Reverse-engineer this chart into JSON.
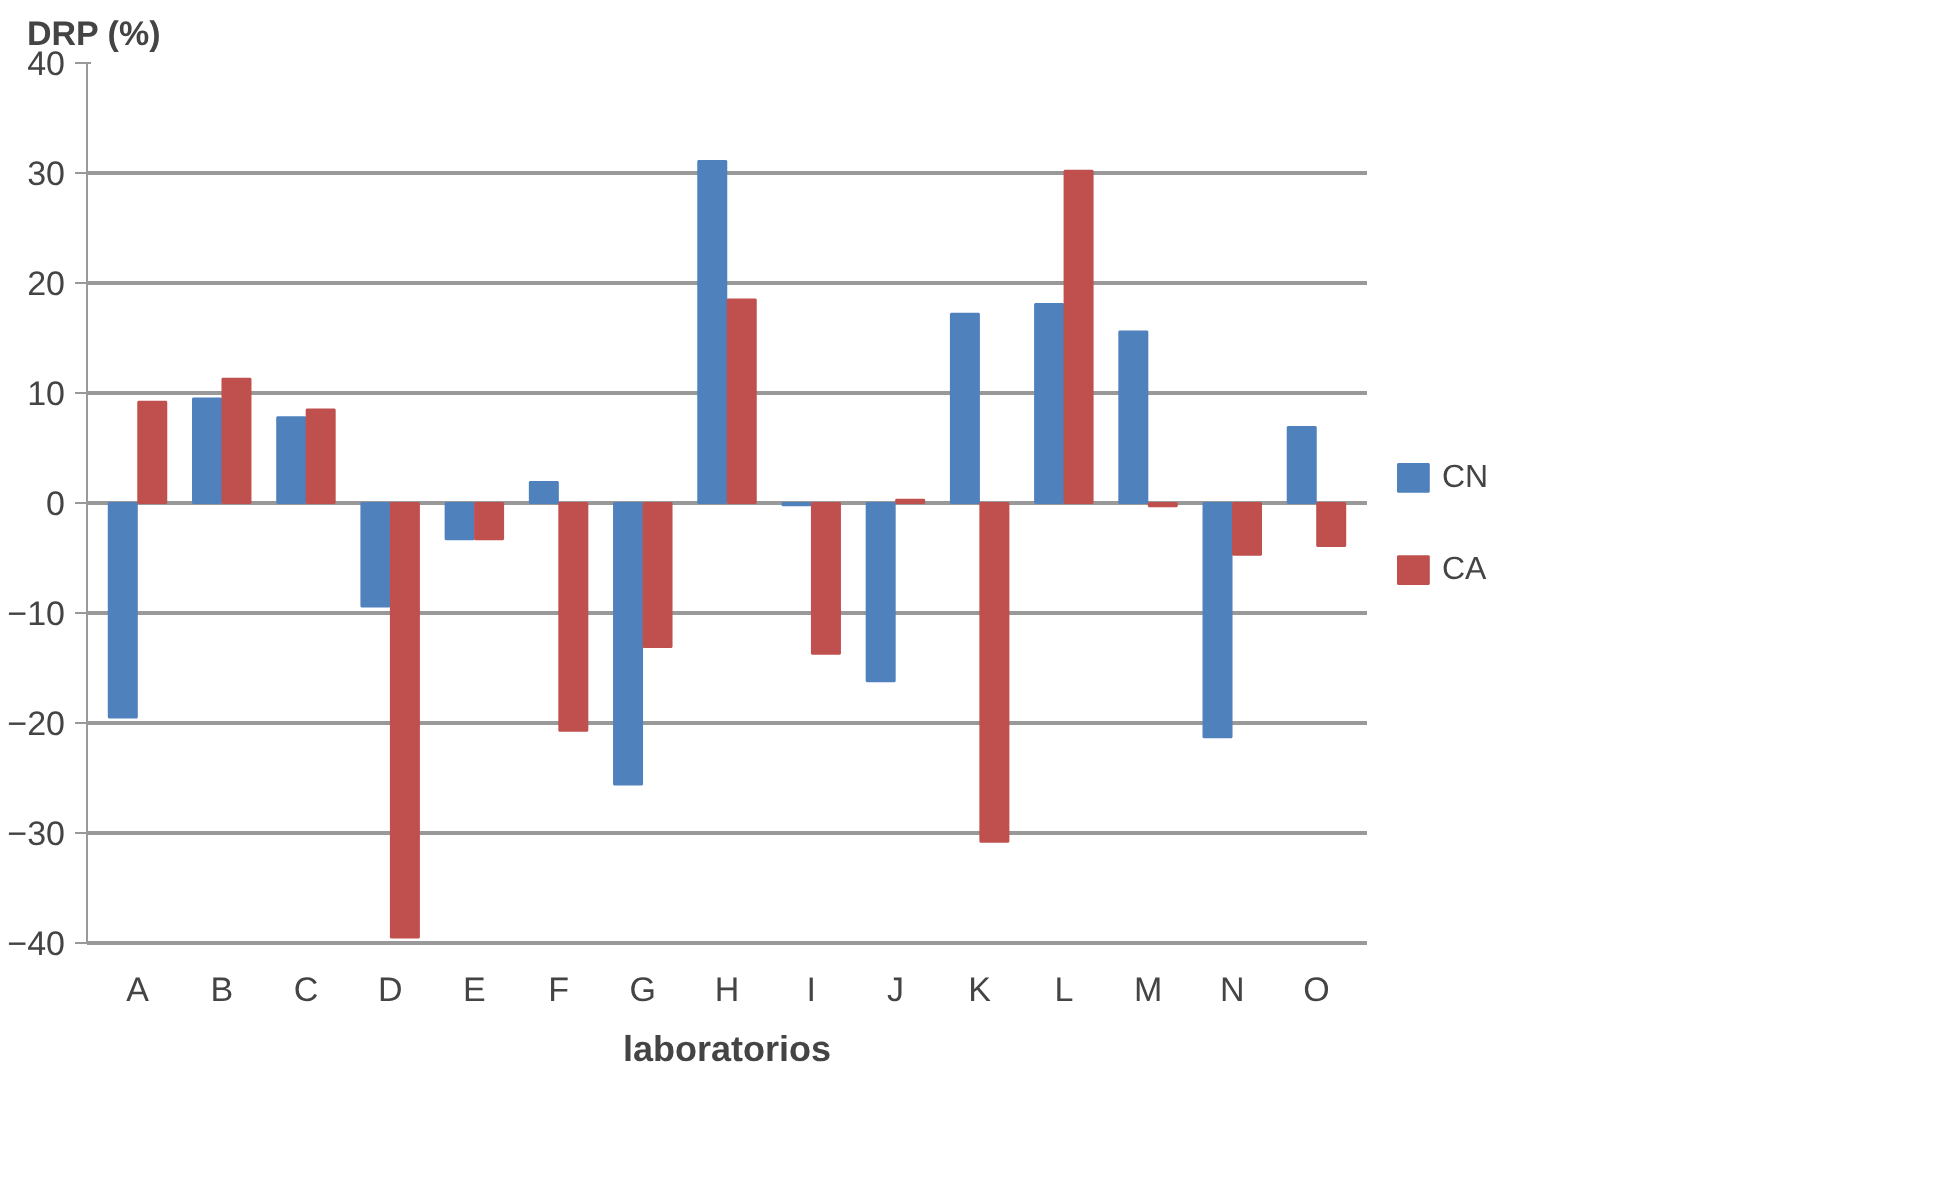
{
  "chart_data": {
    "type": "bar",
    "ylabel": "DRP (%)",
    "xlabel": "laboratorios",
    "categories": [
      "A",
      "B",
      "C",
      "D",
      "E",
      "F",
      "G",
      "H",
      "I",
      "J",
      "K",
      "L",
      "M",
      "N",
      "O"
    ],
    "series": [
      {
        "name": "CN",
        "color": "#4f81bd",
        "values": [
          -19.5,
          9.5,
          7.8,
          -9.4,
          -3.3,
          1.9,
          -25.6,
          31.1,
          -0.2,
          -16.2,
          17.2,
          18.1,
          15.6,
          -21.3,
          6.9
        ]
      },
      {
        "name": "CA",
        "color": "#c0504d",
        "values": [
          9.2,
          11.3,
          8.5,
          -39.5,
          -3.3,
          -20.7,
          -13.1,
          18.5,
          -13.7,
          0.3,
          -30.8,
          30.2,
          -0.3,
          -4.7,
          -3.9
        ]
      }
    ],
    "ylim": [
      -40,
      40
    ],
    "yticks": [
      -40,
      -30,
      -20,
      -10,
      0,
      10,
      20,
      30,
      40
    ],
    "grid": "y",
    "legend": "right"
  }
}
